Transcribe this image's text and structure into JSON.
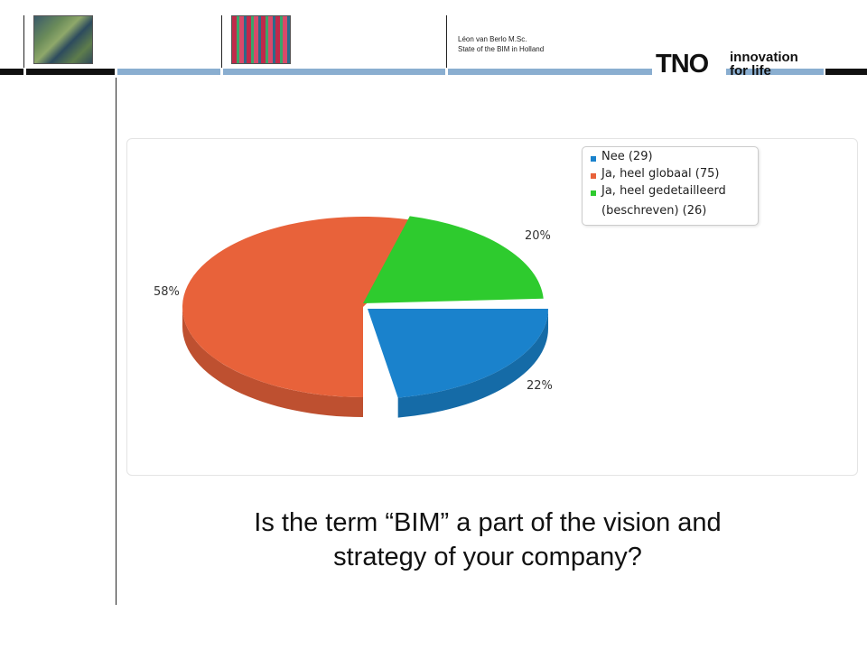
{
  "header": {
    "author_line1": "Léon van Berlo M.Sc.",
    "author_line2": "State of the BIM in Holland",
    "logo_brand": "TNO",
    "logo_tagline_1": "innovation",
    "logo_tagline_2": "for life",
    "bar_color": "#8aaed0"
  },
  "chart_data": {
    "type": "pie",
    "legend_position": "top-right",
    "slices": [
      {
        "label": "Nee (29)",
        "value": 29,
        "percent_label": "22%",
        "color": "#1a82cc"
      },
      {
        "label": "Ja, heel globaal (75)",
        "value": 75,
        "percent_label": "58%",
        "color": "#e8623a"
      },
      {
        "label": "Ja, heel gedetailleerd (beschreven) (26)",
        "value": 26,
        "percent_label": "20%",
        "color": "#2ecb2e"
      }
    ],
    "legend": [
      "Nee (29)",
      "Ja, heel globaal (75)",
      "Ja, heel gedetailleerd",
      "(beschreven) (26)"
    ]
  },
  "caption": {
    "line1": "Is the term “BIM” a part of the vision and",
    "line2": "strategy of your company?"
  }
}
